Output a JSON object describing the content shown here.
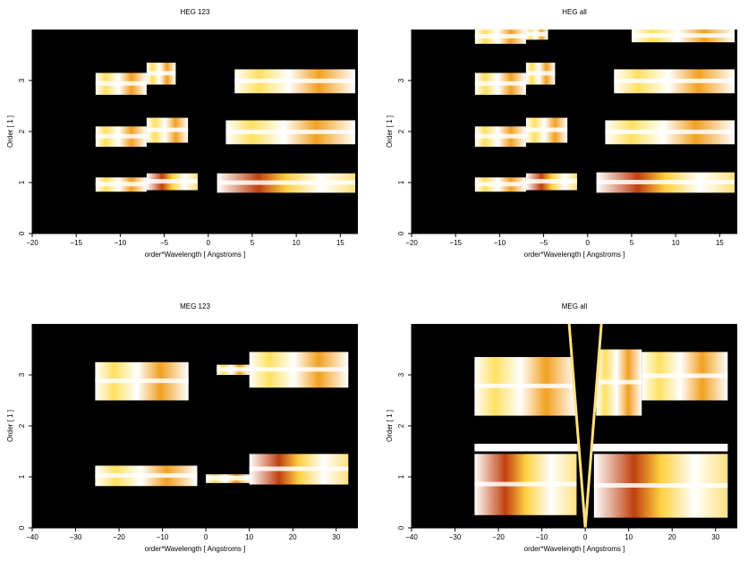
{
  "chart_data": [
    {
      "type": "heatmap",
      "title": "HEG 123",
      "xlabel": "order*Wavelength [ Angstroms ]",
      "ylabel": "Order [ 1 ]",
      "xlim": [
        -20,
        17
      ],
      "ylim": [
        0,
        4
      ],
      "xticks": [
        "−20",
        "−15",
        "−10",
        "−5",
        "0",
        "5",
        "10",
        "15"
      ],
      "xtick_values": [
        -20,
        -15,
        -10,
        -5,
        0,
        5,
        10,
        15
      ],
      "yticks": [
        "0",
        "1",
        "2",
        "3"
      ],
      "ytick_values": [
        0,
        1,
        2,
        3
      ],
      "bands": [
        {
          "order": 1,
          "x0": -12.8,
          "x1": -7,
          "y0": 0.82,
          "y1": 1.1,
          "hot": 1
        },
        {
          "order": 1,
          "x0": -7,
          "x1": -1.2,
          "y0": 0.85,
          "y1": 1.18,
          "hot": 2
        },
        {
          "order": 1,
          "x0": 1,
          "x1": 16.7,
          "y0": 0.8,
          "y1": 1.18,
          "hot": 2
        },
        {
          "order": 2,
          "x0": -12.8,
          "x1": -7,
          "y0": 1.7,
          "y1": 2.1,
          "hot": 1
        },
        {
          "order": 2,
          "x0": -7,
          "x1": -2.3,
          "y0": 1.78,
          "y1": 2.27,
          "hot": 1
        },
        {
          "order": 2,
          "x0": 2,
          "x1": 16.7,
          "y0": 1.75,
          "y1": 2.22,
          "hot": 1
        },
        {
          "order": 3,
          "x0": -12.8,
          "x1": -7,
          "y0": 2.72,
          "y1": 3.15,
          "hot": 1
        },
        {
          "order": 3,
          "x0": -7,
          "x1": -3.7,
          "y0": 2.92,
          "y1": 3.35,
          "hot": 1
        },
        {
          "order": 3,
          "x0": 3,
          "x1": 16.7,
          "y0": 2.75,
          "y1": 3.22,
          "hot": 1
        }
      ]
    },
    {
      "type": "heatmap",
      "title": "HEG all",
      "xlabel": "order*Wavelength [ Angstroms ]",
      "ylabel": "Order [ 1 ]",
      "xlim": [
        -20,
        17
      ],
      "ylim": [
        0,
        4
      ],
      "xticks": [
        "−20",
        "−15",
        "−10",
        "−5",
        "0",
        "5",
        "10",
        "15"
      ],
      "xtick_values": [
        -20,
        -15,
        -10,
        -5,
        0,
        5,
        10,
        15
      ],
      "yticks": [
        "0",
        "1",
        "2",
        "3"
      ],
      "ytick_values": [
        0,
        1,
        2,
        3
      ],
      "bands": [
        {
          "order": 1,
          "x0": -12.8,
          "x1": -7,
          "y0": 0.82,
          "y1": 1.1,
          "hot": 1
        },
        {
          "order": 1,
          "x0": -7,
          "x1": -1.2,
          "y0": 0.85,
          "y1": 1.18,
          "hot": 2
        },
        {
          "order": 1,
          "x0": 1,
          "x1": 16.7,
          "y0": 0.8,
          "y1": 1.2,
          "hot": 2
        },
        {
          "order": 2,
          "x0": -12.8,
          "x1": -7,
          "y0": 1.7,
          "y1": 2.1,
          "hot": 1
        },
        {
          "order": 2,
          "x0": -7,
          "x1": -2.3,
          "y0": 1.78,
          "y1": 2.27,
          "hot": 1
        },
        {
          "order": 2,
          "x0": 2,
          "x1": 16.7,
          "y0": 1.75,
          "y1": 2.22,
          "hot": 1
        },
        {
          "order": 3,
          "x0": -12.8,
          "x1": -7,
          "y0": 2.72,
          "y1": 3.15,
          "hot": 1
        },
        {
          "order": 3,
          "x0": -7,
          "x1": -3.7,
          "y0": 2.92,
          "y1": 3.35,
          "hot": 1
        },
        {
          "order": 3,
          "x0": 3,
          "x1": 16.7,
          "y0": 2.75,
          "y1": 3.22,
          "hot": 1
        },
        {
          "order": 4,
          "x0": -12.8,
          "x1": -7,
          "y0": 3.72,
          "y1": 4,
          "hot": 1
        },
        {
          "order": 4,
          "x0": -7,
          "x1": -4.5,
          "y0": 3.8,
          "y1": 4,
          "hot": 1
        },
        {
          "order": 4,
          "x0": 5,
          "x1": 16.7,
          "y0": 3.75,
          "y1": 4,
          "hot": 1
        }
      ]
    },
    {
      "type": "heatmap",
      "title": "MEG 123",
      "xlabel": "order*Wavelength [ Angstroms ]",
      "ylabel": "Order [ 1 ]",
      "xlim": [
        -40,
        35
      ],
      "ylim": [
        0,
        4
      ],
      "xticks": [
        "−40",
        "−30",
        "−20",
        "−10",
        "0",
        "10",
        "20",
        "30"
      ],
      "xtick_values": [
        -40,
        -30,
        -20,
        -10,
        0,
        10,
        20,
        30
      ],
      "yticks": [
        "0",
        "1",
        "2",
        "3"
      ],
      "ytick_values": [
        0,
        1,
        2,
        3
      ],
      "bands": [
        {
          "order": 1,
          "x0": -25.5,
          "x1": -2,
          "y0": 0.82,
          "y1": 1.22,
          "hot": 1
        },
        {
          "order": 1,
          "x0": 0,
          "x1": 10,
          "y0": 0.88,
          "y1": 1.05,
          "hot": 1
        },
        {
          "order": 1,
          "x0": 10,
          "x1": 32.8,
          "y0": 0.85,
          "y1": 1.45,
          "hot": 2
        },
        {
          "order": 3,
          "x0": -25.5,
          "x1": -4,
          "y0": 2.5,
          "y1": 3.25,
          "hot": 1
        },
        {
          "order": 3,
          "x0": 2.5,
          "x1": 10,
          "y0": 3,
          "y1": 3.2,
          "hot": 1
        },
        {
          "order": 3,
          "x0": 10,
          "x1": 32.8,
          "y0": 2.75,
          "y1": 3.45,
          "hot": 1
        }
      ]
    },
    {
      "type": "heatmap",
      "title": "MEG all",
      "xlabel": "order*Wavelength [ Angstroms ]",
      "ylabel": "Order [ 1 ]",
      "xlim": [
        -40,
        35
      ],
      "ylim": [
        0,
        4
      ],
      "xticks": [
        "−40",
        "−30",
        "−20",
        "−10",
        "0",
        "10",
        "20",
        "30"
      ],
      "xtick_values": [
        -40,
        -30,
        -20,
        -10,
        0,
        10,
        20,
        30
      ],
      "yticks": [
        "0",
        "1",
        "2",
        "3"
      ],
      "ytick_values": [
        0,
        1,
        2,
        3
      ],
      "bands": [
        {
          "order": 1,
          "x0": -25.5,
          "x1": -2,
          "y0": 0.25,
          "y1": 1.45,
          "hot": 2
        },
        {
          "order": 1,
          "x0": 2,
          "x1": 32.8,
          "y0": 0.2,
          "y1": 1.45,
          "hot": 2
        },
        {
          "order": 1,
          "x0": -25.5,
          "x1": 32.8,
          "y0": 1.5,
          "y1": 1.65,
          "hot": 3
        },
        {
          "order": 3,
          "x0": -25.5,
          "x1": -2,
          "y0": 2.2,
          "y1": 3.35,
          "hot": 1
        },
        {
          "order": 3,
          "x0": 2.5,
          "x1": 13,
          "y0": 2.2,
          "y1": 3.5,
          "hot": 1
        },
        {
          "order": 3,
          "x0": 13,
          "x1": 32.8,
          "y0": 2.5,
          "y1": 3.45,
          "hot": 1
        }
      ]
    }
  ]
}
